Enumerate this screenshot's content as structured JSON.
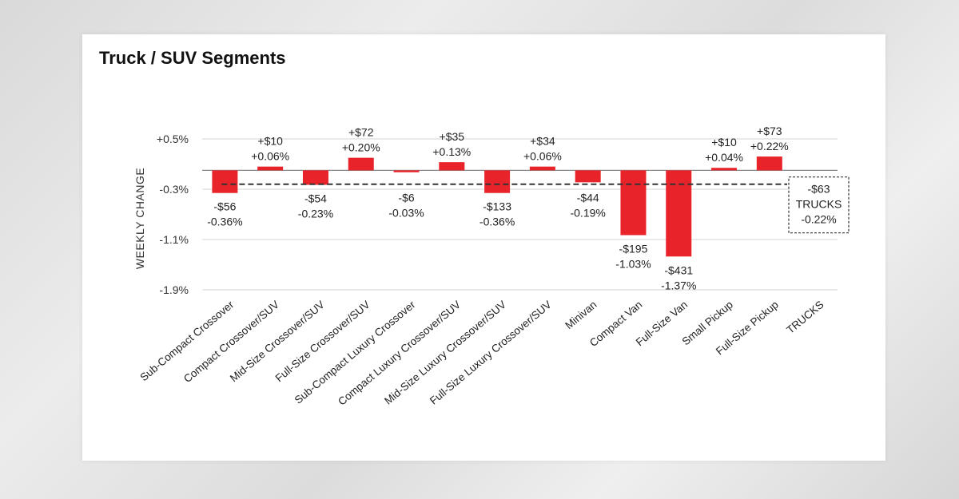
{
  "page": {
    "title": "Truck / SUV Segments"
  },
  "chart_data": {
    "type": "bar",
    "title": "Truck / SUV Segments",
    "xlabel": "",
    "ylabel": "WEEKLY CHANGE",
    "ylim": [
      -1.9,
      0.5
    ],
    "yticks": [
      0.5,
      -0.3,
      -1.1,
      -1.9
    ],
    "ytick_labels": [
      "+0.5%",
      "-0.3%",
      "-1.1%",
      "-1.9%"
    ],
    "grid": true,
    "bar_color": "#e8242a",
    "categories": [
      "Sub-Compact Crossover",
      "Compact Crossover/SUV",
      "Mid-Size Crossover/SUV",
      "Full-Size Crossover/SUV",
      "Sub-Compact Luxury Crossover",
      "Compact Luxury Crossover/SUV",
      "Mid-Size Luxury Crossover/SUV",
      "Full-Size Luxury Crossover/SUV",
      "Minivan",
      "Compact Van",
      "Full-Size Van",
      "Small Pickup",
      "Full-Size Pickup",
      "TRUCKS"
    ],
    "values_pct": [
      -0.36,
      0.06,
      -0.23,
      0.2,
      -0.03,
      0.13,
      -0.36,
      0.06,
      -0.19,
      -1.03,
      -1.37,
      0.04,
      0.22,
      null
    ],
    "dollar_labels": [
      "-$56",
      "+$10",
      "-$54",
      "+$72",
      "-$6",
      "+$35",
      "-$133",
      "+$34",
      "-$44",
      "-$195",
      "-$431",
      "+$10",
      "+$73",
      null
    ],
    "pct_labels": [
      "-0.36%",
      "+0.06%",
      "-0.23%",
      "+0.20%",
      "-0.03%",
      "+0.13%",
      "-0.36%",
      "+0.06%",
      "-0.19%",
      "-1.03%",
      "-1.37%",
      "+0.04%",
      "+0.22%",
      null
    ],
    "reference_line": {
      "name": "TRUCKS",
      "value_pct": -0.22,
      "dollar_label": "-$63",
      "label": "TRUCKS",
      "pct_label": "-0.22%",
      "style": "dashed"
    }
  }
}
